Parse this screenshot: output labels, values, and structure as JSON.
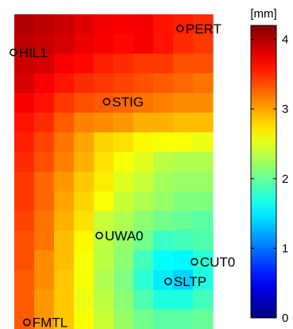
{
  "chart_data": {
    "type": "heatmap",
    "title": "",
    "rows": 16,
    "cols": 10,
    "values": [
      [
        4.0,
        3.95,
        3.9,
        3.8,
        3.72,
        3.7,
        3.72,
        3.6,
        3.55,
        3.5
      ],
      [
        3.95,
        3.9,
        3.85,
        3.75,
        3.7,
        3.65,
        3.7,
        3.6,
        3.5,
        3.45
      ],
      [
        3.9,
        3.85,
        3.7,
        3.65,
        3.55,
        3.5,
        3.45,
        3.45,
        3.35,
        3.35
      ],
      [
        3.85,
        3.7,
        3.6,
        3.5,
        3.45,
        3.4,
        3.35,
        3.3,
        3.25,
        3.2
      ],
      [
        3.7,
        3.6,
        3.45,
        3.35,
        3.3,
        3.25,
        3.2,
        3.15,
        3.1,
        3.1
      ],
      [
        3.6,
        3.5,
        3.3,
        3.15,
        3.1,
        3.05,
        2.95,
        2.95,
        2.9,
        2.9
      ],
      [
        3.55,
        3.4,
        3.2,
        3.0,
        2.8,
        2.75,
        2.65,
        2.6,
        2.6,
        2.55
      ],
      [
        3.5,
        3.35,
        3.15,
        2.95,
        2.75,
        2.6,
        2.5,
        2.35,
        2.3,
        2.3
      ],
      [
        3.45,
        3.25,
        3.05,
        2.85,
        2.7,
        2.5,
        2.4,
        2.25,
        2.2,
        2.2
      ],
      [
        3.45,
        3.25,
        3.0,
        2.8,
        2.6,
        2.4,
        2.3,
        2.2,
        2.1,
        2.1
      ],
      [
        3.4,
        3.2,
        2.95,
        2.75,
        2.4,
        2.3,
        2.15,
        2.05,
        2.0,
        1.95
      ],
      [
        3.35,
        3.2,
        2.9,
        2.65,
        2.35,
        2.2,
        2.05,
        1.8,
        1.85,
        1.9
      ],
      [
        3.35,
        3.1,
        2.9,
        2.6,
        2.35,
        2.15,
        1.85,
        1.6,
        1.55,
        1.75
      ],
      [
        3.3,
        3.1,
        2.85,
        2.6,
        2.3,
        2.1,
        1.75,
        1.5,
        1.4,
        1.7
      ],
      [
        3.3,
        3.05,
        2.85,
        2.55,
        2.35,
        2.15,
        1.9,
        1.7,
        1.7,
        1.85
      ],
      [
        3.3,
        3.05,
        2.85,
        2.6,
        2.4,
        2.2,
        2.05,
        1.95,
        1.95,
        2.0
      ]
    ],
    "stations": [
      {
        "name": "PERT",
        "col": 8.35,
        "row": 0.72
      },
      {
        "name": "HIL1",
        "col": -0.05,
        "row": 1.94
      },
      {
        "name": "STIG",
        "col": 4.65,
        "row": 4.44
      },
      {
        "name": "UWA0",
        "col": 4.28,
        "row": 11.25
      },
      {
        "name": "CUT0",
        "col": 9.07,
        "row": 12.58
      },
      {
        "name": "SLTP",
        "col": 7.75,
        "row": 13.58
      },
      {
        "name": "FMTL",
        "col": 0.63,
        "row": 15.66
      }
    ],
    "colorbar": {
      "unit": "[mm]",
      "min": 0,
      "max": 4.2,
      "ticks": [
        "0",
        "1",
        "2",
        "3",
        "4"
      ],
      "tick_values": [
        0,
        1,
        2,
        3,
        4
      ]
    },
    "colormap": "jet"
  }
}
